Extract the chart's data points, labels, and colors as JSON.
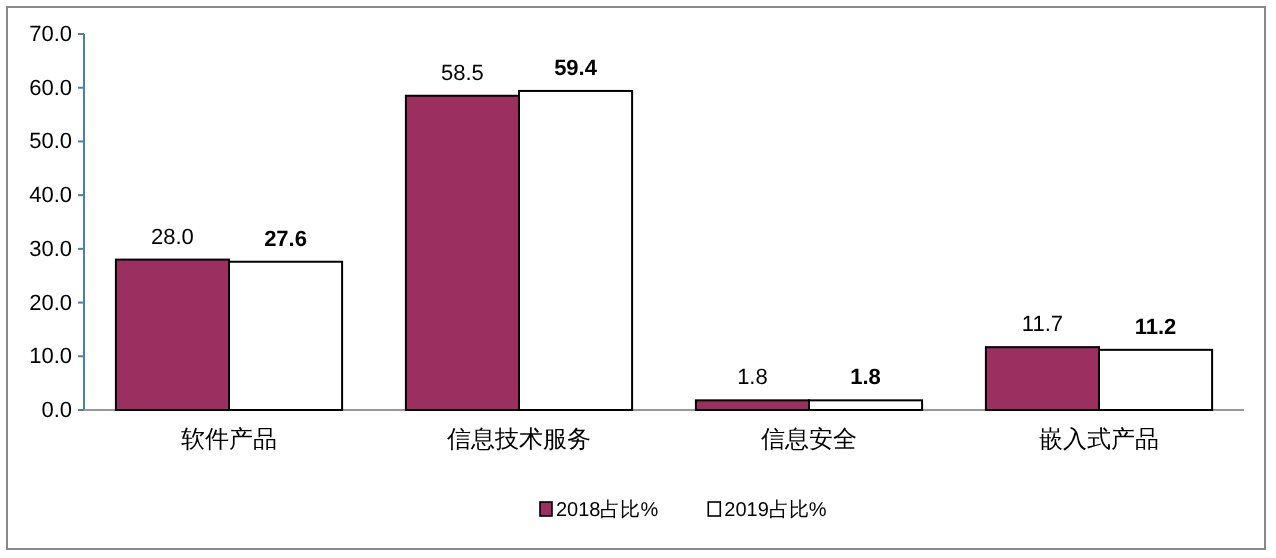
{
  "chart_data": {
    "type": "bar",
    "categories": [
      "软件产品",
      "信息技术服务",
      "信息安全",
      "嵌入式产品"
    ],
    "series": [
      {
        "name": "2018占比%",
        "color": "#9b2f60",
        "values": [
          28.0,
          58.5,
          1.8,
          11.7
        ],
        "value_labels": [
          "28.0",
          "58.5",
          "1.8",
          "11.7"
        ]
      },
      {
        "name": "2019占比%",
        "color": "#ffffff",
        "values": [
          27.6,
          59.4,
          1.8,
          11.2
        ],
        "value_labels": [
          "27.6",
          "59.4",
          "1.8",
          "11.2"
        ]
      }
    ],
    "ylim": [
      0,
      70
    ],
    "yticks": [
      {
        "value": 0,
        "label": "0.0"
      },
      {
        "value": 10,
        "label": "10.0"
      },
      {
        "value": 20,
        "label": "20.0"
      },
      {
        "value": 30,
        "label": "30.0"
      },
      {
        "value": 40,
        "label": "40.0"
      },
      {
        "value": 50,
        "label": "50.0"
      },
      {
        "value": 60,
        "label": "60.0"
      },
      {
        "value": 70,
        "label": "70.0"
      }
    ],
    "grid": false,
    "legend": "bottom"
  }
}
